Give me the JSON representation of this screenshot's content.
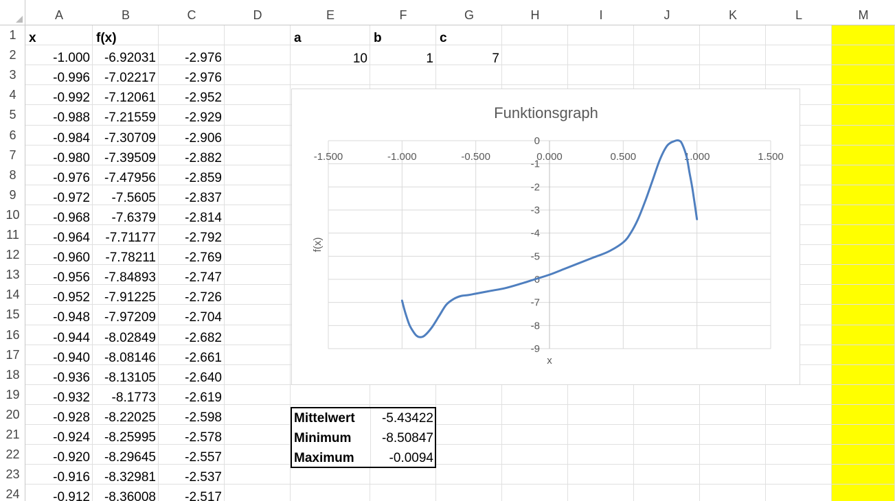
{
  "columns": [
    "A",
    "B",
    "C",
    "D",
    "E",
    "F",
    "G",
    "H",
    "I",
    "J",
    "K",
    "L",
    "M"
  ],
  "rows": [
    "1",
    "2",
    "3",
    "4",
    "5",
    "6",
    "7",
    "8",
    "9",
    "10",
    "11",
    "12",
    "13",
    "14",
    "15",
    "16",
    "17",
    "18",
    "19",
    "20",
    "21",
    "22",
    "23",
    "24"
  ],
  "headers": {
    "x": "x",
    "fx": "f(x)",
    "a": "a",
    "b": "b",
    "c": "c"
  },
  "params": {
    "a": "10",
    "b": "1",
    "c": "7"
  },
  "table": [
    [
      "-1.000",
      "-6.92031",
      "-2.976"
    ],
    [
      "-0.996",
      "-7.02217",
      "-2.976"
    ],
    [
      "-0.992",
      "-7.12061",
      "-2.952"
    ],
    [
      "-0.988",
      "-7.21559",
      "-2.929"
    ],
    [
      "-0.984",
      "-7.30709",
      "-2.906"
    ],
    [
      "-0.980",
      "-7.39509",
      "-2.882"
    ],
    [
      "-0.976",
      "-7.47956",
      "-2.859"
    ],
    [
      "-0.972",
      "-7.5605",
      "-2.837"
    ],
    [
      "-0.968",
      "-7.6379",
      "-2.814"
    ],
    [
      "-0.964",
      "-7.71177",
      "-2.792"
    ],
    [
      "-0.960",
      "-7.78211",
      "-2.769"
    ],
    [
      "-0.956",
      "-7.84893",
      "-2.747"
    ],
    [
      "-0.952",
      "-7.91225",
      "-2.726"
    ],
    [
      "-0.948",
      "-7.97209",
      "-2.704"
    ],
    [
      "-0.944",
      "-8.02849",
      "-2.682"
    ],
    [
      "-0.940",
      "-8.08146",
      "-2.661"
    ],
    [
      "-0.936",
      "-8.13105",
      "-2.640"
    ],
    [
      "-0.932",
      "-8.1773",
      "-2.619"
    ],
    [
      "-0.928",
      "-8.22025",
      "-2.598"
    ],
    [
      "-0.924",
      "-8.25995",
      "-2.578"
    ],
    [
      "-0.920",
      "-8.29645",
      "-2.557"
    ],
    [
      "-0.916",
      "-8.32981",
      "-2.537"
    ],
    [
      "-0.912",
      "-8.36008",
      "-2.517"
    ]
  ],
  "stats": [
    {
      "label": "Mittelwert",
      "value": "-5.43422"
    },
    {
      "label": "Minimum",
      "value": "-8.50847"
    },
    {
      "label": "Maximum",
      "value": "-0.0094"
    }
  ],
  "colors": {
    "highlight_column": "#ffff00",
    "series": "#4f7fbf"
  },
  "chart_data": {
    "type": "line",
    "title": "Funktionsgraph",
    "xlabel": "x",
    "ylabel": "f(x)",
    "xlim": [
      -1.5,
      1.5
    ],
    "ylim": [
      -9,
      0
    ],
    "x_ticks": [
      "-1.500",
      "-1.000",
      "-0.500",
      "0.000",
      "0.500",
      "1.000",
      "1.500"
    ],
    "y_ticks": [
      "0",
      "-1",
      "-2",
      "-3",
      "-4",
      "-5",
      "-6",
      "-7",
      "-8",
      "-9"
    ],
    "grid": true,
    "series": [
      {
        "x": [
          -1.0,
          -0.98,
          -0.95,
          -0.92,
          -0.9,
          -0.88,
          -0.85,
          -0.8,
          -0.75,
          -0.7,
          -0.65,
          -0.6,
          -0.55,
          -0.5,
          -0.4,
          -0.3,
          -0.2,
          -0.1,
          0.0,
          0.1,
          0.2,
          0.3,
          0.4,
          0.5,
          0.55,
          0.6,
          0.65,
          0.7,
          0.75,
          0.8,
          0.85,
          0.88,
          0.9,
          0.93,
          0.95,
          0.97,
          1.0
        ],
        "y": [
          -6.92,
          -7.4,
          -7.97,
          -8.3,
          -8.45,
          -8.5,
          -8.45,
          -8.1,
          -7.6,
          -7.1,
          -6.85,
          -6.72,
          -6.68,
          -6.62,
          -6.5,
          -6.38,
          -6.2,
          -6.0,
          -5.8,
          -5.55,
          -5.3,
          -5.05,
          -4.8,
          -4.4,
          -4.0,
          -3.4,
          -2.6,
          -1.7,
          -0.8,
          -0.2,
          -0.01,
          0.0,
          -0.15,
          -0.7,
          -1.4,
          -2.1,
          -3.4
        ]
      }
    ]
  }
}
